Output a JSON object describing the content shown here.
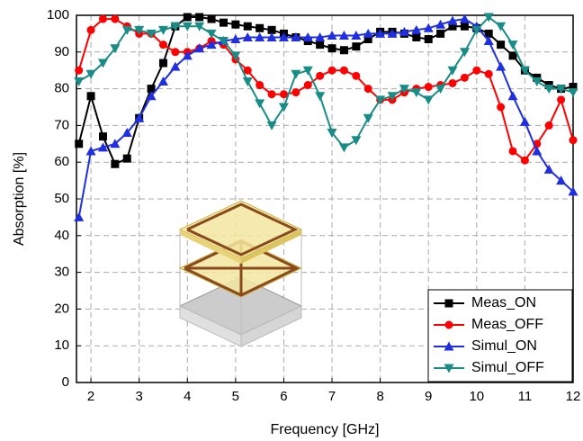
{
  "chart_data": {
    "type": "line",
    "x_label": "Frequency [GHz]",
    "y_label": "Absorption [%]",
    "x": [
      1.75,
      2,
      2.25,
      2.5,
      2.75,
      3,
      3.25,
      3.5,
      3.75,
      4,
      4.25,
      4.5,
      4.75,
      5,
      5.25,
      5.5,
      5.75,
      6,
      6.25,
      6.5,
      6.75,
      7,
      7.25,
      7.5,
      7.75,
      8,
      8.25,
      8.5,
      8.75,
      9,
      9.25,
      9.5,
      9.75,
      10,
      10.25,
      10.5,
      10.75,
      11,
      11.25,
      11.5,
      11.75,
      12
    ],
    "series": [
      {
        "name": "Meas_ON",
        "color": "#000000",
        "marker": "square",
        "values": [
          65,
          78,
          67,
          59.5,
          61,
          72,
          80,
          87,
          97,
          99.5,
          99.5,
          99,
          98,
          97.5,
          97,
          96.5,
          96,
          95,
          94,
          93,
          92,
          91,
          90.5,
          91.5,
          93.5,
          95.5,
          95.5,
          95,
          94,
          93.5,
          95,
          97,
          97,
          96.5,
          95,
          92,
          89,
          85,
          83,
          81,
          80,
          80.5
        ]
      },
      {
        "name": "Meas_OFF",
        "color": "#ff0000",
        "marker": "circle",
        "values": [
          85,
          96,
          99,
          99,
          97,
          95,
          95,
          92,
          90,
          90,
          91,
          93,
          92,
          88,
          85,
          81,
          78.5,
          78.5,
          79,
          81,
          83.5,
          85,
          85,
          83.5,
          80,
          77,
          77,
          79,
          80,
          80.5,
          81,
          81.5,
          83,
          85,
          84,
          75,
          63,
          60.5,
          65,
          70,
          77,
          66
        ]
      },
      {
        "name": "Simul_ON",
        "color": "#1f2fe0",
        "marker": "triangle-up",
        "values": [
          45,
          63,
          64,
          65,
          68,
          72,
          78,
          82,
          86,
          89,
          91,
          92,
          93,
          93.5,
          94,
          94,
          94,
          94,
          94,
          94,
          94,
          94.5,
          94.5,
          94.5,
          95,
          95,
          95,
          95.5,
          96,
          96.5,
          97.5,
          98.5,
          99,
          97,
          93,
          86,
          78,
          71,
          63,
          58,
          55,
          52
        ]
      },
      {
        "name": "Simul_OFF",
        "color": "#1a8c87",
        "marker": "triangle-down",
        "values": [
          82,
          84,
          87,
          91,
          96,
          96,
          95,
          96,
          97,
          97,
          97,
          95,
          93,
          89,
          82,
          76,
          70,
          75,
          84,
          85,
          78,
          68,
          64,
          66,
          72,
          77,
          78,
          80,
          79,
          77,
          80,
          85,
          90,
          96,
          99.5,
          97,
          92,
          85,
          82,
          80,
          80,
          79
        ]
      }
    ],
    "xlim": [
      1.7,
      12
    ],
    "ylim": [
      0,
      100
    ],
    "xticks": [
      2,
      3,
      4,
      5,
      6,
      7,
      8,
      9,
      10,
      11,
      12
    ],
    "yticks": [
      0,
      10,
      20,
      30,
      40,
      50,
      60,
      70,
      80,
      90,
      100
    ],
    "grid": true,
    "legend_position": "lower right"
  }
}
